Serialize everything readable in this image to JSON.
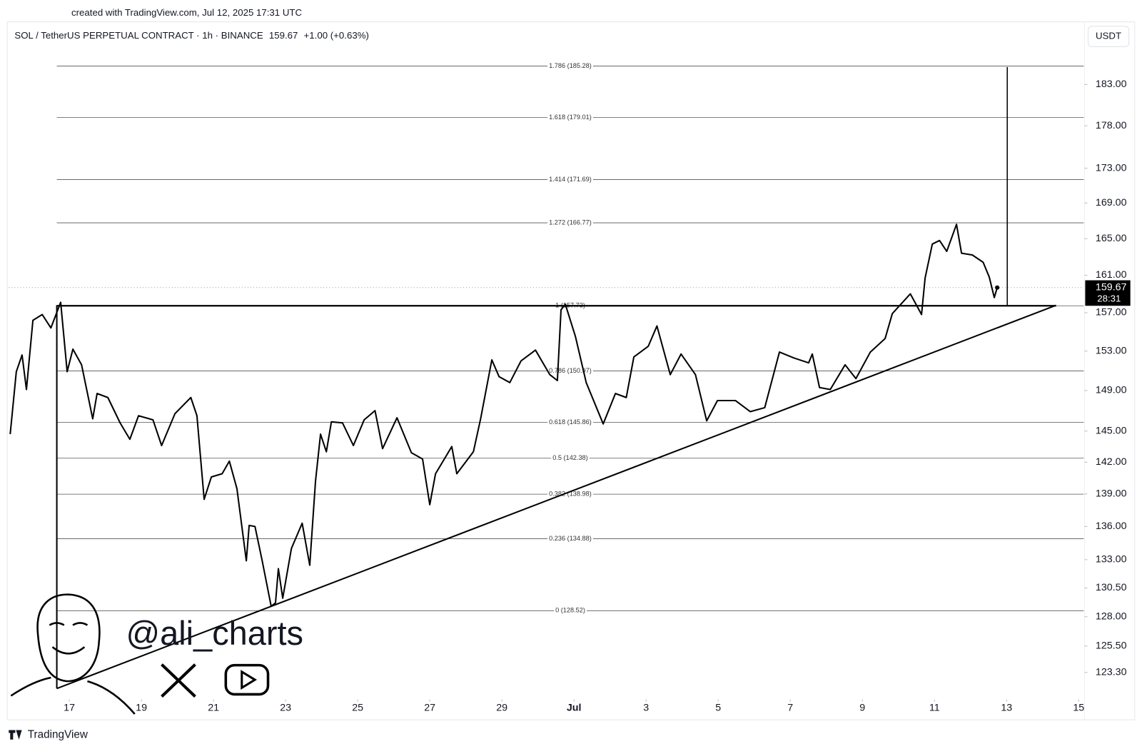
{
  "chart_data": {
    "type": "line",
    "created_note": "created with TradingView.com, Jul 12, 2025 17:31 UTC",
    "title": "SOL / TetherUS PERPETUAL CONTRACT · 1h · BINANCE",
    "last_price": 159.67,
    "change_label": "+1.00 (+0.63%)",
    "countdown": "28:31",
    "currency": "USDT",
    "brand": "TradingView",
    "author": "@ali_charts",
    "color": "#000000",
    "log_scale": true,
    "x": [
      15.36,
      15.53,
      15.69,
      15.81,
      15.99,
      16.25,
      16.49,
      16.76,
      16.94,
      17.1,
      17.34,
      17.65,
      17.77,
      18.07,
      18.41,
      18.68,
      18.92,
      19.32,
      19.56,
      19.93,
      20.37,
      20.54,
      20.74,
      20.94,
      21.24,
      21.44,
      21.65,
      21.91,
      21.99,
      22.15,
      22.35,
      22.6,
      22.72,
      22.8,
      22.92,
      23.16,
      23.46,
      23.67,
      23.83,
      23.97,
      24.13,
      24.27,
      24.58,
      24.88,
      25.18,
      25.48,
      25.69,
      26.09,
      26.49,
      26.8,
      27.0,
      27.16,
      27.61,
      27.75,
      28.21,
      28.41,
      28.72,
      28.92,
      29.22,
      29.53,
      29.93,
      30.33,
      30.54,
      30.64,
      30.76,
      31.04,
      31.34,
      31.81,
      32.15,
      32.45,
      32.66,
      33.06,
      33.3,
      33.67,
      33.97,
      34.37,
      34.68,
      34.98,
      35.48,
      35.89,
      36.29,
      36.7,
      37.1,
      37.51,
      37.61,
      37.81,
      38.11,
      38.52,
      38.82,
      39.22,
      39.63,
      39.83,
      40.33,
      40.64,
      40.74,
      40.94,
      41.14,
      41.34,
      41.61,
      41.75,
      42.05,
      42.35,
      42.52,
      42.66,
      42.74
    ],
    "values": [
      144.7,
      150.9,
      152.6,
      149.1,
      156.2,
      156.8,
      155.4,
      158.1,
      150.9,
      153.2,
      151.6,
      146.2,
      148.7,
      148.3,
      145.8,
      144.2,
      146.5,
      146.1,
      143.6,
      146.7,
      148.3,
      146.5,
      138.5,
      140.6,
      140.9,
      142.1,
      139.5,
      132.9,
      136.1,
      136.0,
      132.9,
      128.9,
      129.2,
      132.2,
      129.6,
      134.0,
      136.3,
      132.5,
      140.2,
      144.7,
      143.0,
      145.9,
      145.8,
      143.6,
      146.1,
      147.0,
      143.3,
      146.3,
      142.9,
      142.3,
      138.0,
      140.9,
      143.5,
      140.9,
      143.0,
      146.2,
      152.1,
      150.4,
      149.8,
      152.0,
      153.1,
      150.6,
      150.0,
      157.3,
      157.9,
      154.5,
      149.8,
      145.7,
      148.7,
      148.3,
      152.4,
      153.5,
      155.6,
      150.6,
      152.7,
      150.6,
      146.0,
      148.0,
      148.0,
      146.9,
      147.3,
      152.9,
      152.3,
      151.8,
      152.7,
      149.3,
      149.1,
      151.6,
      150.2,
      152.9,
      154.3,
      156.9,
      159.0,
      156.8,
      160.7,
      164.4,
      164.8,
      163.6,
      166.6,
      163.4,
      163.2,
      162.4,
      160.8,
      158.6,
      159.67
    ],
    "xlim": [
      15.32,
      45.14
    ],
    "xticks": [
      17,
      19,
      21,
      23,
      25,
      27,
      29,
      {
        "value": 31,
        "label": "Jul"
      },
      {
        "value": 33,
        "label": "3"
      },
      {
        "value": 35,
        "label": "5"
      },
      {
        "value": 37,
        "label": "7"
      },
      {
        "value": 39,
        "label": "9"
      },
      {
        "value": 41,
        "label": "11"
      },
      {
        "value": 43,
        "label": "13"
      },
      {
        "value": 45,
        "label": "15"
      }
    ],
    "ylim": [
      121.2,
      190.4
    ],
    "yticks": [
      {
        "value": 183,
        "label": "183.00"
      },
      {
        "value": 178,
        "label": "178.00"
      },
      {
        "value": 173,
        "label": "173.00"
      },
      {
        "value": 169,
        "label": "169.00"
      },
      {
        "value": 165,
        "label": "165.00"
      },
      {
        "value": 161,
        "label": "161.00"
      },
      {
        "value": 157,
        "label": "157.00"
      },
      {
        "value": 153,
        "label": "153.00"
      },
      {
        "value": 149,
        "label": "149.00"
      },
      {
        "value": 145,
        "label": "145.00"
      },
      {
        "value": 142,
        "label": "142.00"
      },
      {
        "value": 139,
        "label": "139.00"
      },
      {
        "value": 136,
        "label": "136.00"
      },
      {
        "value": 133,
        "label": "133.00"
      },
      {
        "value": 130.5,
        "label": "130.50"
      },
      {
        "value": 128,
        "label": "128.00"
      },
      {
        "value": 125.5,
        "label": "125.50"
      },
      {
        "value": 123.3,
        "label": "123.30"
      }
    ],
    "fib_levels": [
      {
        "value": 185.28,
        "label": "1.786 (185.28)"
      },
      {
        "value": 179.01,
        "label": "1.618 (179.01)"
      },
      {
        "value": 171.69,
        "label": "1.414 (171.69)"
      },
      {
        "value": 166.77,
        "label": "1.272 (166.77)"
      },
      {
        "value": 157.73,
        "label": "1 (157.73)"
      },
      {
        "value": 150.97,
        "label": "0.786 (150.97)"
      },
      {
        "value": 145.86,
        "label": "0.618 (145.86)"
      },
      {
        "value": 142.38,
        "label": "0.5 (142.38)"
      },
      {
        "value": 138.98,
        "label": "0.382 (138.98)"
      },
      {
        "value": 134.88,
        "label": "0.236 (134.88)"
      },
      {
        "value": 128.52,
        "label": "0 (128.52)"
      }
    ]
  }
}
